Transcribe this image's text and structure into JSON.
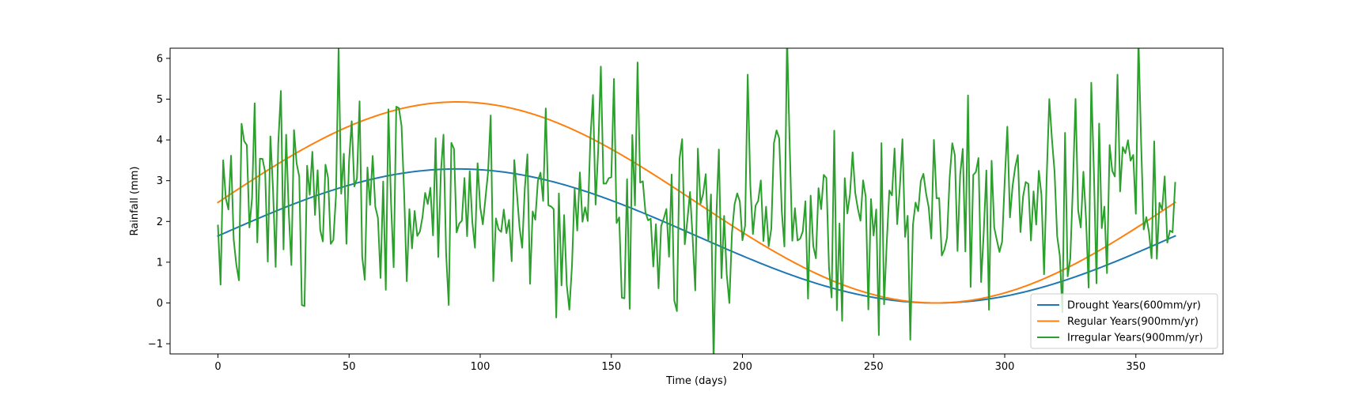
{
  "chart_data": {
    "type": "line",
    "xlabel": "Time (days)",
    "ylabel": "Rainfall (mm)",
    "xlim": [
      -18.25,
      383.25
    ],
    "ylim": [
      -1.25,
      6.25
    ],
    "xticks": [
      0,
      50,
      100,
      150,
      200,
      250,
      300,
      350
    ],
    "yticks": [
      -1,
      0,
      1,
      2,
      3,
      4,
      5,
      6
    ],
    "x": {
      "start": 0,
      "end": 365,
      "step": 1
    },
    "legend_position": "lower right",
    "grid": false,
    "series": [
      {
        "name": "Drought Years(600mm/yr)",
        "color": "#1f77b4",
        "kind": "sine",
        "amplitude": 1.6438,
        "offset": 1.6438,
        "period": 365,
        "sample_x": [
          0,
          91,
          182,
          274,
          365
        ],
        "sample_y": [
          1.64,
          3.29,
          1.67,
          0.0,
          1.64
        ]
      },
      {
        "name": "Regular Years(900mm/yr)",
        "color": "#ff7f0e",
        "kind": "sine",
        "amplitude": 2.4658,
        "offset": 2.4658,
        "period": 365,
        "sample_x": [
          0,
          91,
          182,
          274,
          365
        ],
        "sample_y": [
          2.47,
          4.93,
          2.5,
          0.0,
          2.47
        ]
      },
      {
        "name": "Irregular Years(900mm/yr)",
        "color": "#2ca02c",
        "kind": "noisy",
        "base": 2.4658,
        "noise_sd": 1.25,
        "seed": 7,
        "anchor_points": [
          [
            0,
            1.9
          ],
          [
            1,
            0.45
          ],
          [
            2,
            3.5
          ],
          [
            24,
            5.2
          ],
          [
            32,
            -0.05
          ],
          [
            65,
            4.75
          ],
          [
            88,
            -0.05
          ],
          [
            146,
            5.8
          ],
          [
            160,
            5.9
          ],
          [
            175,
            -0.2
          ],
          [
            202,
            5.6
          ],
          [
            264,
            -0.9
          ],
          [
            343,
            5.6
          ],
          [
            365,
            2.95
          ]
        ]
      }
    ]
  }
}
